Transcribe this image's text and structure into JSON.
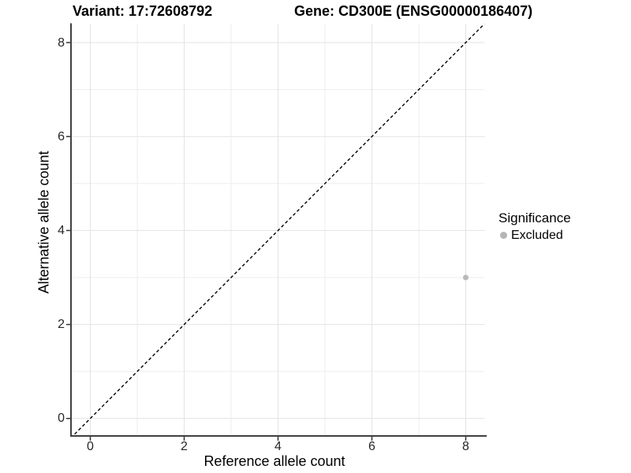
{
  "titles": {
    "variant": "Variant: 17:72608792",
    "gene": "Gene: CD300E (ENSG00000186407)"
  },
  "chart_data": {
    "type": "scatter",
    "xlabel": "Reference allele count",
    "ylabel": "Alternative allele count",
    "xlim": [
      -0.4,
      8.4
    ],
    "ylim": [
      -0.4,
      8.4
    ],
    "x_ticks": [
      0,
      2,
      4,
      6,
      8
    ],
    "y_ticks": [
      0,
      2,
      4,
      6,
      8
    ],
    "x_minor_ticks": [
      1,
      3,
      5,
      7
    ],
    "y_minor_ticks": [
      1,
      3,
      5,
      7
    ],
    "grid": true,
    "points": [
      {
        "x": 8,
        "y": 3,
        "series": "Excluded"
      }
    ],
    "reference_line": {
      "kind": "identity",
      "slope": 1,
      "intercept": 0,
      "style": "dashed"
    },
    "legend": {
      "title": "Significance",
      "position": "right",
      "items": [
        {
          "label": "Excluded",
          "color": "#b5b5b5"
        }
      ]
    },
    "colors": {
      "point": "#b9b9b9",
      "grid_major": "#e3e3e3",
      "grid_minor": "#eeeeee",
      "axis_line": "#404040",
      "tick_mark": "#333333",
      "reference_line": "#000000",
      "background": "#ffffff"
    }
  }
}
